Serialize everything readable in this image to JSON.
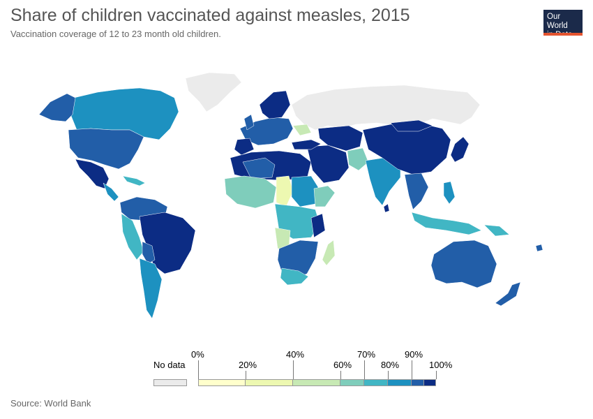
{
  "header": {
    "title": "Share of children vaccinated against measles, 2015",
    "subtitle": "Vaccination coverage of 12 to 23 month old children."
  },
  "logo": {
    "line1": "Our World",
    "line2": "in Data"
  },
  "legend": {
    "no_data_label": "No data",
    "no_data_color": "#ebebeb",
    "bins": [
      {
        "from": 0,
        "to": 20,
        "color": "#ffffcc"
      },
      {
        "from": 20,
        "to": 40,
        "color": "#edf8b1"
      },
      {
        "from": 40,
        "to": 60,
        "color": "#c7e9b4"
      },
      {
        "from": 60,
        "to": 70,
        "color": "#7fcdbb"
      },
      {
        "from": 70,
        "to": 80,
        "color": "#41b6c4"
      },
      {
        "from": 80,
        "to": 90,
        "color": "#1d91c0"
      },
      {
        "from": 90,
        "to": 95,
        "color": "#225ea8"
      },
      {
        "from": 95,
        "to": 100,
        "color": "#0c2c84"
      }
    ],
    "labels": [
      "0%",
      "20%",
      "40%",
      "60%",
      "70%",
      "80%",
      "90%",
      "100%"
    ]
  },
  "footer": {
    "source": "Source: World Bank"
  },
  "colors": {
    "no_data": "#ebebeb",
    "very_low": "#ffffcc",
    "low": "#edf8b1",
    "mid": "#c7e9b4",
    "mid_high": "#7fcdbb",
    "high": "#41b6c4",
    "higher": "#1d91c0",
    "very_high": "#225ea8",
    "max": "#0c2c84"
  }
}
